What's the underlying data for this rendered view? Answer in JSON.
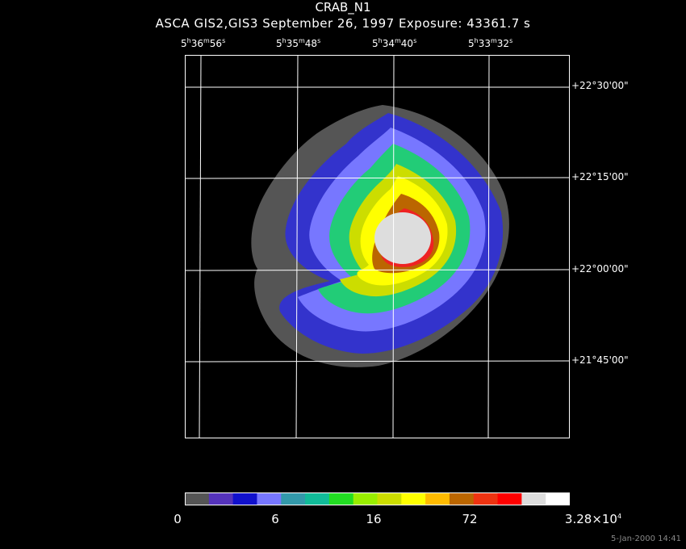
{
  "title": "CRAB_N1",
  "subtitle": "ASCA GIS2,GIS3 September 26, 1997 Exposure: 43361.7 s",
  "ra_labels": [
    {
      "h": "5",
      "m": "36",
      "s": "56"
    },
    {
      "h": "5",
      "m": "35",
      "s": "48"
    },
    {
      "h": "5",
      "m": "34",
      "s": "40"
    },
    {
      "h": "5",
      "m": "33",
      "s": "32"
    }
  ],
  "dec_labels": [
    "+22°30'00\"",
    "+22°15'00\"",
    "+22°00'00\"",
    "+21°45'00\""
  ],
  "colorbar": {
    "colors": [
      "#555555",
      "#5533bb",
      "#1111cc",
      "#7777ff",
      "#3399aa",
      "#11bb99",
      "#22dd22",
      "#99ee00",
      "#ccdd00",
      "#ffff00",
      "#ffbb00",
      "#bb6600",
      "#ee3311",
      "#ff0000",
      "#dddddd",
      "#ffffff"
    ],
    "tick_labels": [
      "0",
      "6",
      "16",
      "72",
      "3.28×10"
    ],
    "tick_label_last_exp": "4"
  },
  "timestamp": "5-Jan-2000 14:41"
}
